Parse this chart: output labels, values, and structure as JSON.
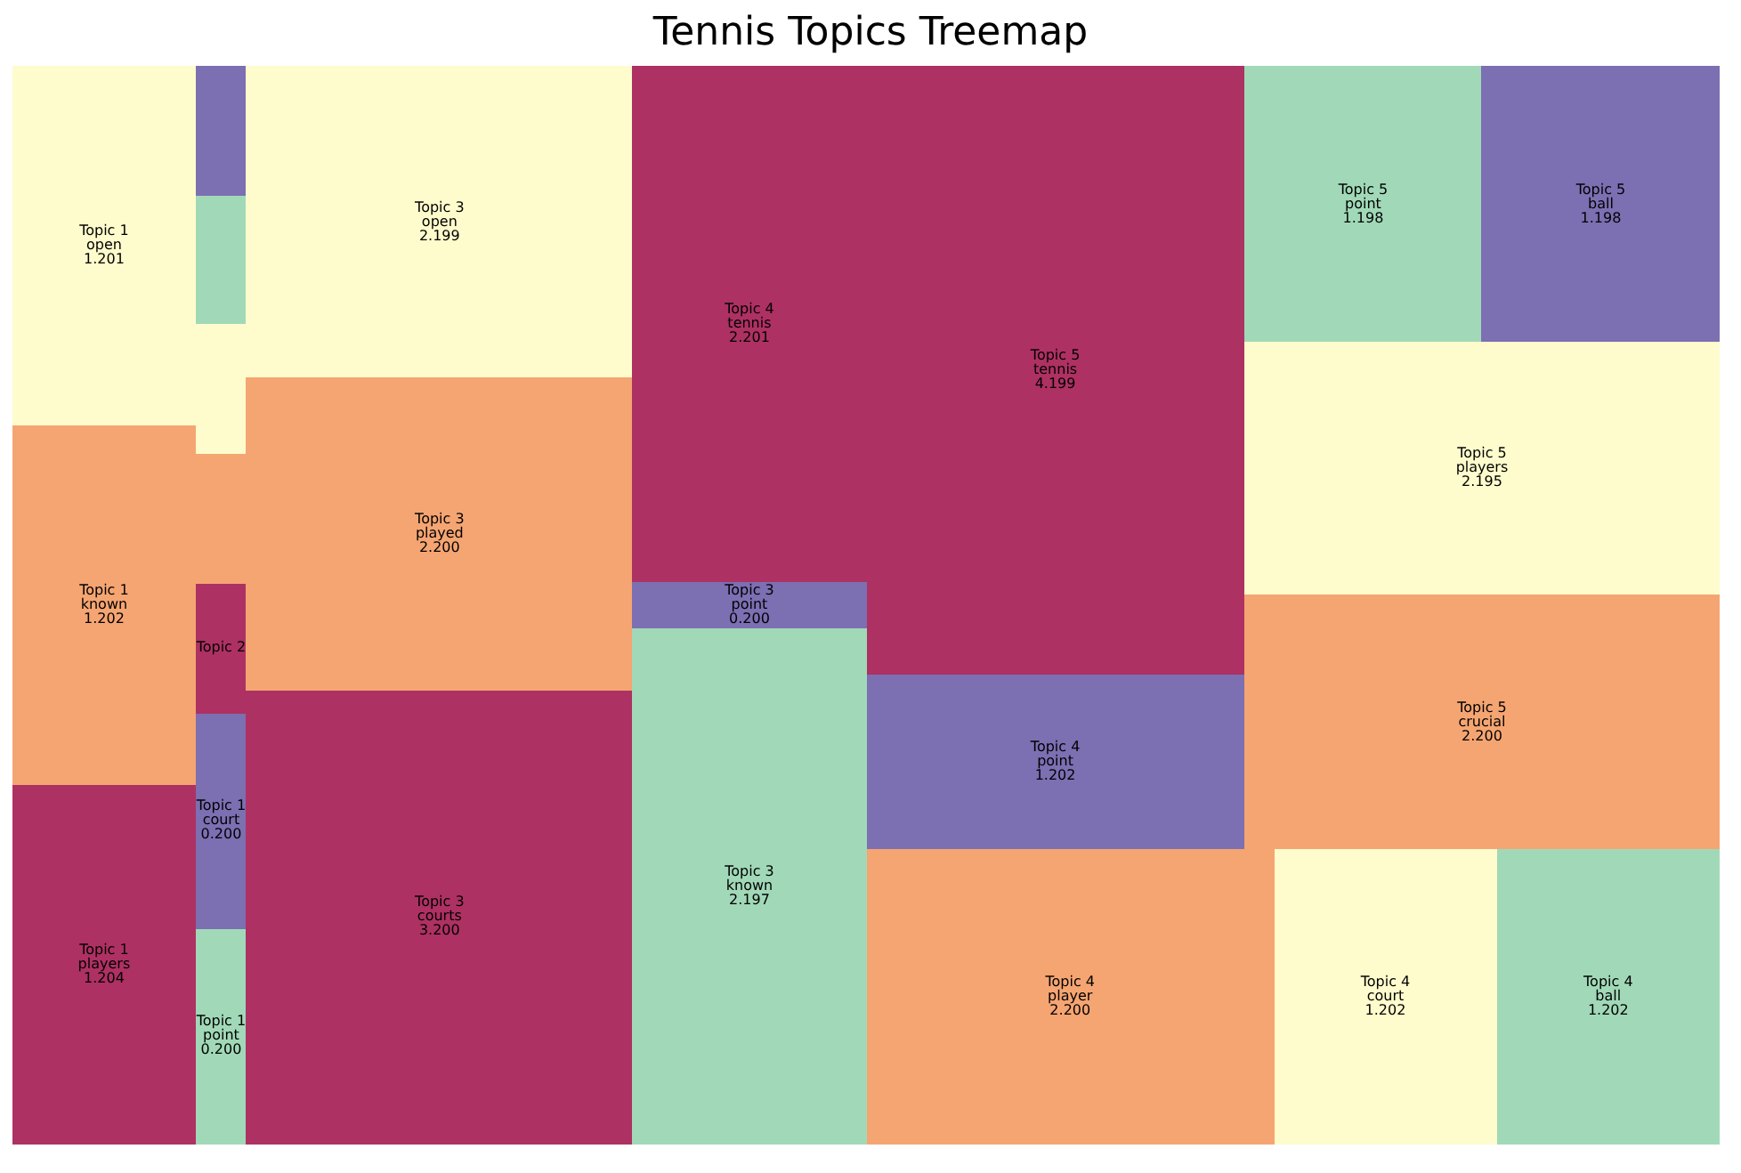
{
  "chart_data": {
    "type": "other",
    "title": "Tennis Topics Treemap",
    "categories": [
      "Topic 1\nplayers",
      "Topic 1\nknown",
      "Topic 1\nopen",
      "Topic 1\npoint",
      "Topic 1\ncourt",
      "Topic 2",
      null,
      null,
      null,
      null,
      "Topic 3\ncourts",
      "Topic 3\nplayed",
      "Topic 3\nopen",
      "Topic 3\nknown",
      "Topic 3\npoint",
      "Topic 4\ntennis",
      "Topic 4\nplayer",
      "Topic 4\ncourt",
      "Topic 4\nball",
      "Topic 4\npoint",
      "Topic 5\ntennis",
      "Topic 5\ncrucial",
      "Topic 5\nplayers",
      "Topic 5\npoint",
      "Topic 5\nball"
    ],
    "values": [
      1.204,
      1.202,
      1.201,
      0.2,
      0.2,
      null,
      null,
      null,
      null,
      null,
      3.2,
      2.2,
      2.199,
      2.197,
      0.2,
      2.201,
      2.2,
      1.202,
      1.202,
      1.202,
      4.199,
      2.2,
      2.195,
      1.198,
      1.198
    ],
    "value_labels": [
      "1.204",
      "1.202",
      "1.201",
      "0.200",
      "0.200",
      null,
      null,
      null,
      null,
      null,
      "3.200",
      "2.200",
      "2.199",
      "2.197",
      "0.200",
      "2.201",
      "2.200",
      "1.202",
      "1.202",
      "1.202",
      "4.199",
      "2.200",
      "2.195",
      "1.198",
      "1.198"
    ],
    "colors": [
      "#ae3163",
      "#f5a572",
      "#fefccc",
      "#a1d9b8",
      "#7c6fb2",
      "#ae3163",
      "#f5a572",
      "#fefccc",
      "#a1d9b8",
      "#7c6fb2",
      "#ae3163",
      "#f5a572",
      "#fefccc",
      "#a1d9b8",
      "#7c6fb2",
      "#ae3163",
      "#f5a572",
      "#fefccc",
      "#a1d9b8",
      "#7c6fb2",
      "#ae3163",
      "#f5a572",
      "#fefccc",
      "#a1d9b8",
      "#7c6fb2"
    ]
  }
}
